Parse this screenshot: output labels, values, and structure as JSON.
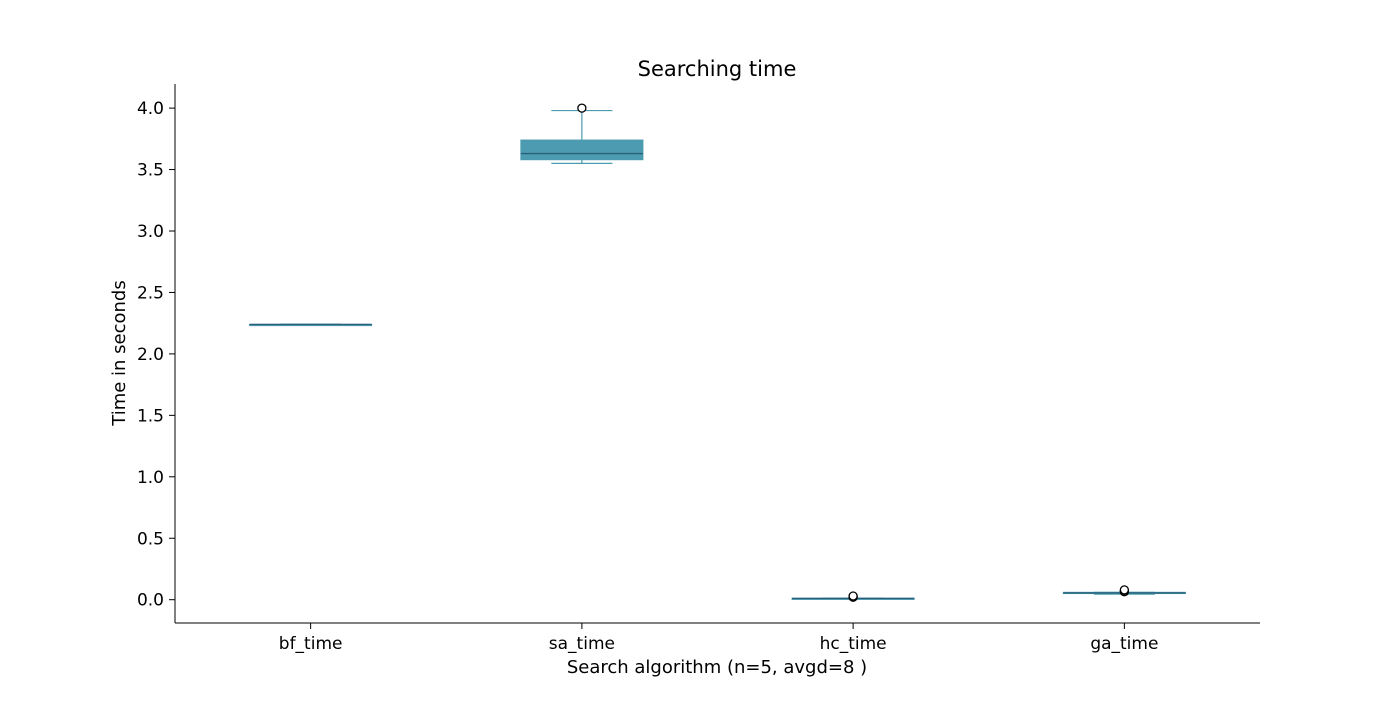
{
  "chart_data": {
    "type": "box",
    "title": "Searching time",
    "xlabel": "Search algorithm (n=5, avgd=8 )",
    "ylabel": "Time in seconds",
    "ylim": [
      -0.19,
      4.2
    ],
    "yticks": [
      "0.0",
      "0.5",
      "1.0",
      "1.5",
      "2.0",
      "2.5",
      "3.0",
      "3.5",
      "4.0"
    ],
    "categories": [
      "bf_time",
      "sa_time",
      "hc_time",
      "ga_time"
    ],
    "grid": false,
    "legend": "none",
    "colors": {
      "box_fill": "#4c9bb0",
      "box_edge": "#4c9bb0",
      "median": "#2a5f7a",
      "whisker": "#4c9bb0",
      "outlier_edge": "#000000",
      "outlier_fill": "#ffffff"
    },
    "boxes": [
      {
        "name": "bf_time",
        "whislo": 2.24,
        "q1": 2.24,
        "med": 2.24,
        "q3": 2.24,
        "whishi": 2.24,
        "fliers": []
      },
      {
        "name": "sa_time",
        "whislo": 3.55,
        "q1": 3.58,
        "med": 3.63,
        "q3": 3.74,
        "whishi": 3.98,
        "fliers": [
          4.0
        ]
      },
      {
        "name": "hc_time",
        "whislo": 0.008,
        "q1": 0.009,
        "med": 0.01,
        "q3": 0.012,
        "whishi": 0.013,
        "fliers": [
          0.02,
          0.025,
          0.03
        ]
      },
      {
        "name": "ga_time",
        "whislo": 0.045,
        "q1": 0.05,
        "med": 0.055,
        "q3": 0.06,
        "whishi": 0.06,
        "fliers": [
          0.065,
          0.07,
          0.08
        ]
      }
    ]
  }
}
